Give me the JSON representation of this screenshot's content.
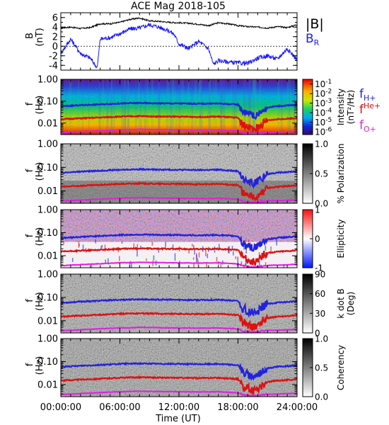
{
  "title": "ACE Mag 2018-105",
  "x_axis": {
    "label": "Time (UT)",
    "ticks": [
      "00:00:00",
      "06:00:00",
      "12:00:00",
      "18:00:00",
      "24:00:00"
    ],
    "range_hours": [
      0,
      24
    ]
  },
  "legend_top": {
    "total": "|B|",
    "radial": "B",
    "radial_sub": "R"
  },
  "gyro_legend": [
    {
      "base": "f",
      "sub": "H+",
      "super": "",
      "color": "#2222dd"
    },
    {
      "base": "f",
      "sub": "",
      "super": "He+",
      "color": "#dd1111"
    },
    {
      "base": "f",
      "sub": "O+",
      "super": "",
      "color": "#dd22dd"
    }
  ],
  "freq_axis": {
    "label": "f",
    "unit": "(Hz)",
    "ticks": [
      "1.00",
      "0.10",
      "0.01"
    ],
    "scale": "log",
    "range": [
      0.003,
      1.0
    ]
  },
  "panels": [
    {
      "name": "magnetic-field",
      "ylabel": "B",
      "yunit": "(nT)",
      "ticks": [
        "6",
        "4",
        "2",
        "0",
        "-2",
        "-4"
      ],
      "ylim": [
        -5,
        7
      ]
    },
    {
      "name": "intensity",
      "colorbar_label": "Intensity",
      "colorbar_unit": "(nT²/Hz)",
      "colorbar_ticks": [
        "10",
        "10",
        "10",
        "10",
        "10",
        "10"
      ],
      "colorbar_exps": [
        "-1",
        "-2",
        "-3",
        "-4",
        "-5",
        "-6"
      ],
      "colormap": "rainbow",
      "range_log": [
        -6.3,
        -0.5
      ]
    },
    {
      "name": "polarization",
      "colorbar_label": "% Polarization",
      "colorbar_ticks": [
        "1.0",
        "0.5",
        "0.0"
      ],
      "colormap": "gray",
      "range": [
        0,
        1
      ]
    },
    {
      "name": "ellipticity",
      "colorbar_label": "Ellipticity",
      "colorbar_ticks": [
        "1",
        "0",
        "-1"
      ],
      "colormap": "bluewhitered",
      "range": [
        -1,
        1
      ]
    },
    {
      "name": "wave-normal-angle",
      "colorbar_label": "k dot B",
      "colorbar_unit": "(Deg)",
      "colorbar_ticks": [
        "90",
        "60",
        "30",
        "0"
      ],
      "colormap": "gray",
      "range": [
        0,
        90
      ]
    },
    {
      "name": "coherency",
      "colorbar_label": "Coherency",
      "colorbar_ticks": [
        "1.0",
        "0.5",
        "0.0"
      ],
      "colormap": "gray",
      "range": [
        0,
        1
      ]
    }
  ],
  "chart_data": {
    "type": "line",
    "title": "ACE Mag 2018-105",
    "xlabel": "Time (UT)",
    "ylabel": "B (nT)",
    "xlim": [
      0,
      24
    ],
    "ylim": [
      -5,
      7
    ],
    "series": [
      {
        "name": "|B|",
        "color": "#000000",
        "x": [
          0,
          1,
          2,
          3,
          4,
          5,
          6,
          7,
          8,
          9,
          10,
          11,
          12,
          13,
          14,
          15,
          16,
          17,
          18,
          19,
          20,
          21,
          22,
          23,
          24
        ],
        "y": [
          3.8,
          4.0,
          3.7,
          3.9,
          4.7,
          4.7,
          5.0,
          5.6,
          5.9,
          5.3,
          5.2,
          5.0,
          4.9,
          4.8,
          4.6,
          4.3,
          4.9,
          4.7,
          4.3,
          4.1,
          4.0,
          3.8,
          4.1,
          3.9,
          4.5
        ]
      },
      {
        "name": "BR",
        "color": "#1a1aff",
        "x": [
          0,
          1,
          2,
          3,
          3.7,
          4,
          5,
          6,
          7,
          8,
          9,
          10,
          11,
          11.5,
          12,
          13,
          14,
          15,
          15.5,
          16,
          17,
          18,
          19,
          20,
          21,
          22,
          23,
          24
        ],
        "y": [
          -1.5,
          1.5,
          -1.5,
          -2.5,
          -4.5,
          1.5,
          1.8,
          2.6,
          3.6,
          3.8,
          4.5,
          4.0,
          3.2,
          2.5,
          0.5,
          -0.5,
          1.0,
          -0.5,
          -3.8,
          -3.0,
          -3.3,
          -3.5,
          -3.6,
          -2.5,
          -2.0,
          -2.7,
          -0.5,
          -2.8
        ]
      }
    ],
    "gyrofrequencies": [
      {
        "name": "fH+",
        "color": "#2222dd",
        "x": [
          0,
          2,
          4,
          6,
          8,
          10,
          12,
          14,
          16,
          18,
          18.5,
          19.5,
          20,
          20.5,
          21,
          22,
          24
        ],
        "y": [
          0.058,
          0.066,
          0.072,
          0.079,
          0.083,
          0.08,
          0.079,
          0.077,
          0.079,
          0.07,
          0.032,
          0.022,
          0.025,
          0.038,
          0.052,
          0.06,
          0.068
        ]
      },
      {
        "name": "fHe+",
        "color": "#dd1111",
        "x": [
          0,
          2,
          4,
          6,
          8,
          10,
          12,
          14,
          16,
          18,
          18.5,
          19.5,
          20,
          20.5,
          21,
          22,
          24
        ],
        "y": [
          0.015,
          0.0165,
          0.018,
          0.0198,
          0.0208,
          0.02,
          0.0198,
          0.0192,
          0.0198,
          0.0175,
          0.008,
          0.0052,
          0.006,
          0.0095,
          0.013,
          0.015,
          0.017
        ]
      },
      {
        "name": "fO+",
        "color": "#dd22dd",
        "x": [
          0,
          2,
          4,
          6,
          8,
          10,
          12,
          14,
          16,
          18,
          18.5,
          19.5,
          20,
          20.5,
          21,
          22,
          24
        ],
        "y": [
          0.0037,
          0.0041,
          0.0045,
          0.0049,
          0.0052,
          0.005,
          0.0049,
          0.0048,
          0.0049,
          0.0044,
          0.0036,
          0.0032,
          0.0033,
          0.0036,
          0.0038,
          0.0039,
          0.0042
        ]
      }
    ]
  }
}
